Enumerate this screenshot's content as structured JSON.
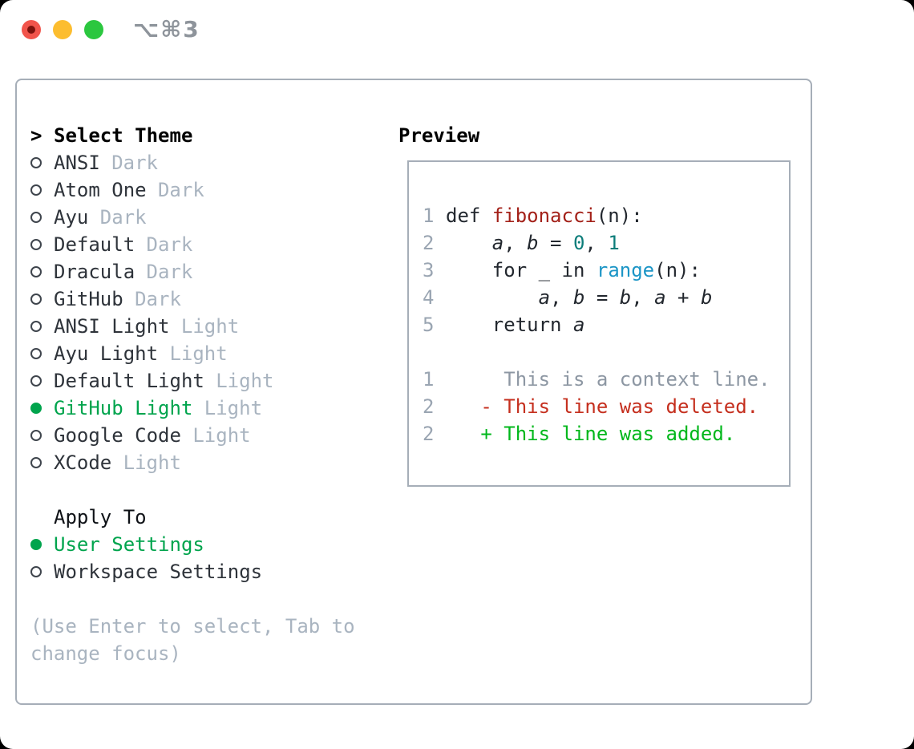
{
  "window": {
    "titlebar_label": "⌥⌘3"
  },
  "colors": {
    "selected_green": "#00a44d",
    "panel_border": "#a6aeb8",
    "muted_gray": "#a9b4c0",
    "traffic_red": "#f1544b",
    "traffic_yellow": "#fcbd2f",
    "traffic_green": "#2bc73f",
    "syntax_function": "#a32119",
    "syntax_number": "#0c7d7a",
    "syntax_builtin": "#1b95c6",
    "diff_deleted": "#c52f1e",
    "diff_added": "#00b71b"
  },
  "theme_selector": {
    "prompt": ">",
    "header": "Select Theme",
    "themes": [
      {
        "name": "ANSI",
        "variant": "Dark",
        "selected": false
      },
      {
        "name": "Atom One",
        "variant": "Dark",
        "selected": false
      },
      {
        "name": "Ayu",
        "variant": "Dark",
        "selected": false
      },
      {
        "name": "Default",
        "variant": "Dark",
        "selected": false
      },
      {
        "name": "Dracula",
        "variant": "Dark",
        "selected": false
      },
      {
        "name": "GitHub",
        "variant": "Dark",
        "selected": false
      },
      {
        "name": "ANSI Light",
        "variant": "Light",
        "selected": false
      },
      {
        "name": "Ayu Light",
        "variant": "Light",
        "selected": false
      },
      {
        "name": "Default Light",
        "variant": "Light",
        "selected": false
      },
      {
        "name": "GitHub Light",
        "variant": "Light",
        "selected": true
      },
      {
        "name": "Google Code",
        "variant": "Light",
        "selected": false
      },
      {
        "name": "XCode",
        "variant": "Light",
        "selected": false
      }
    ],
    "apply_to": {
      "header": "Apply To",
      "options": [
        {
          "label": "User Settings",
          "selected": true
        },
        {
          "label": "Workspace Settings",
          "selected": false
        }
      ]
    },
    "hint_lines": [
      "(Use Enter to select, Tab to",
      "change focus)"
    ]
  },
  "preview": {
    "header": "Preview",
    "lines": [
      {
        "no": "1",
        "tokens": [
          {
            "t": "def",
            "c": "keyword"
          },
          {
            "t": " ",
            "c": "plain"
          },
          {
            "t": "fibonacci",
            "c": "function"
          },
          {
            "t": "(n):",
            "c": "plain"
          }
        ]
      },
      {
        "no": "2",
        "tokens": [
          {
            "t": "    ",
            "c": "plain"
          },
          {
            "t": "a",
            "c": "variable"
          },
          {
            "t": ", ",
            "c": "plain"
          },
          {
            "t": "b",
            "c": "variable"
          },
          {
            "t": " = ",
            "c": "plain"
          },
          {
            "t": "0",
            "c": "number"
          },
          {
            "t": ", ",
            "c": "plain"
          },
          {
            "t": "1",
            "c": "number"
          }
        ]
      },
      {
        "no": "3",
        "tokens": [
          {
            "t": "    ",
            "c": "plain"
          },
          {
            "t": "for",
            "c": "keyword"
          },
          {
            "t": " _ ",
            "c": "plain"
          },
          {
            "t": "in",
            "c": "keyword"
          },
          {
            "t": " ",
            "c": "plain"
          },
          {
            "t": "range",
            "c": "builtin"
          },
          {
            "t": "(n):",
            "c": "plain"
          }
        ]
      },
      {
        "no": "4",
        "tokens": [
          {
            "t": "        ",
            "c": "plain"
          },
          {
            "t": "a",
            "c": "variable"
          },
          {
            "t": ", ",
            "c": "plain"
          },
          {
            "t": "b",
            "c": "variable"
          },
          {
            "t": " = ",
            "c": "plain"
          },
          {
            "t": "b",
            "c": "variable"
          },
          {
            "t": ", ",
            "c": "plain"
          },
          {
            "t": "a",
            "c": "variable"
          },
          {
            "t": " + ",
            "c": "plain"
          },
          {
            "t": "b",
            "c": "variable"
          }
        ]
      },
      {
        "no": "5",
        "tokens": [
          {
            "t": "    ",
            "c": "plain"
          },
          {
            "t": "return",
            "c": "keyword"
          },
          {
            "t": " ",
            "c": "plain"
          },
          {
            "t": "a",
            "c": "variable"
          }
        ]
      },
      {
        "no": "",
        "tokens": []
      },
      {
        "no": "1",
        "tokens": [
          {
            "t": "     This is a context line.",
            "c": "diff-context"
          }
        ]
      },
      {
        "no": "2",
        "tokens": [
          {
            "t": "   - This line was deleted.",
            "c": "diff-deleted"
          }
        ]
      },
      {
        "no": "2",
        "tokens": [
          {
            "t": "   + This line was added.",
            "c": "diff-added"
          }
        ]
      }
    ]
  }
}
